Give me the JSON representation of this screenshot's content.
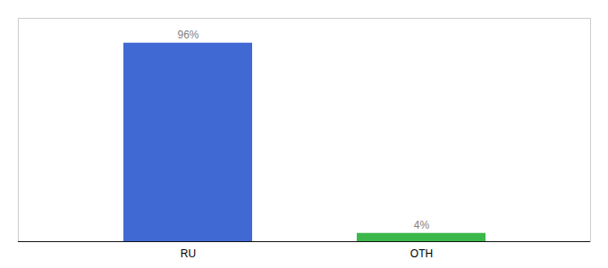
{
  "chart_data": {
    "type": "bar",
    "categories": [
      "RU",
      "OTH"
    ],
    "values": [
      96,
      4
    ],
    "value_labels": [
      "96%",
      "4%"
    ],
    "colors": [
      "#4169d4",
      "#3cb84a"
    ],
    "ylim": [
      0,
      108
    ],
    "data_labels": true,
    "tick_labels": "x"
  }
}
